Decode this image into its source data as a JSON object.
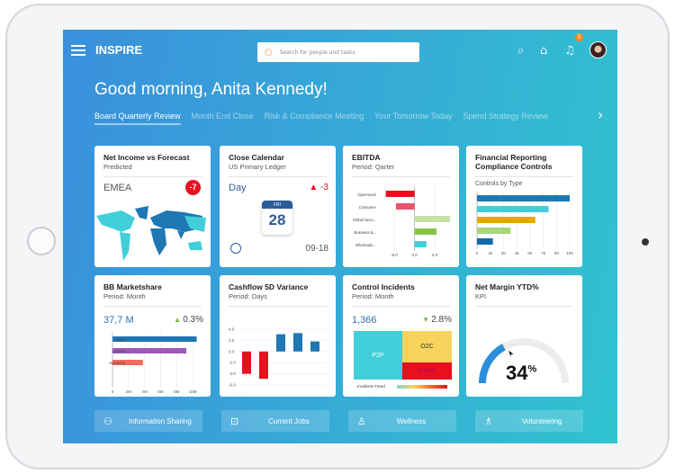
{
  "app": {
    "title": "INSPIRE",
    "notification_count": "5"
  },
  "search": {
    "placeholder": "Search for people and tasks"
  },
  "greeting": "Good morning, Anita Kennedy!",
  "tabs": [
    {
      "label": "Board Quarterly Review",
      "active": true
    },
    {
      "label": "Month End Close"
    },
    {
      "label": "Risk & Compliance Meeting"
    },
    {
      "label": "Your Tomorrow Today"
    },
    {
      "label": "Spend Strategy Review"
    }
  ],
  "cards": {
    "net_income": {
      "title": "Net Income vs Forecast",
      "subtitle": "Predicted",
      "region": "EMEA",
      "badge": "-7"
    },
    "close_calendar": {
      "title": "Close Calendar",
      "subtitle": "US Primary Ledger",
      "label": "Day",
      "alert": "-3",
      "cal_day": "FRI",
      "cal_date": "28",
      "date": "09-18"
    },
    "ebitda": {
      "title": "EBITDA",
      "subtitle": "Period: Qarter"
    },
    "compliance": {
      "title": "Financial Reporting Compliance Controls",
      "chart_label": "Controls by Type"
    },
    "marketshare": {
      "title": "BB Marketshare",
      "subtitle": "Period: Month",
      "value": "37,7 M",
      "delta": "0.3%"
    },
    "cashflow": {
      "title": "Cashflow 5D Variance",
      "subtitle": "Period: Days"
    },
    "incidents": {
      "title": "Control Incidents",
      "subtitle": "Period: Month",
      "value": "1,366",
      "delta": "2.8%",
      "tiles": [
        "P2P",
        "O2C",
        "Close"
      ],
      "legend": "Incidents Trend"
    },
    "net_margin": {
      "title": "Net Margin YTD%",
      "subtitle": "KPI",
      "value": "34",
      "unit": "%"
    }
  },
  "actions": [
    {
      "label": "Information Sharing",
      "icon": "network-icon"
    },
    {
      "label": "Current Jobs",
      "icon": "briefcase-icon"
    },
    {
      "label": "Wellness",
      "icon": "person-walking-icon"
    },
    {
      "label": "Volunteering",
      "icon": "volunteer-icon"
    }
  ],
  "colors": {
    "positive": "#7cb342",
    "negative": "#e8101e",
    "primary": "#2d6fb2"
  },
  "chart_data": [
    {
      "type": "bar",
      "orientation": "horizontal",
      "title": "EBITDA",
      "categories": [
        "Openreach",
        "Consumer",
        "Global Servi...",
        "Business &...",
        "Wholesale..."
      ],
      "values": [
        -8.5,
        -5.5,
        10.5,
        6.5,
        3.5
      ],
      "colors": [
        "#e8101e",
        "#e8546a",
        "#c5e1a5",
        "#8bc34a",
        "#40cfd9"
      ],
      "xticks": [
        "-6.0",
        "0.0",
        "6.0"
      ],
      "xlim": [
        -10,
        11
      ]
    },
    {
      "type": "bar",
      "orientation": "horizontal",
      "title": "Controls by Type",
      "values": [
        105,
        81,
        66,
        38,
        18
      ],
      "colors": [
        "#1f77b4",
        "#40cfd9",
        "#e6a700",
        "#a5d67a",
        "#0e6aa8"
      ],
      "xticks": [
        "0",
        "15",
        "30",
        "45",
        "60",
        "75",
        "90",
        "105"
      ],
      "xlim": [
        0,
        108
      ]
    },
    {
      "type": "bar",
      "orientation": "horizontal",
      "title": "BB Marketshare",
      "categories": [
        "Apple",
        "Lenovo",
        "Samsung"
      ],
      "values": [
        10.5,
        9.2,
        3.8
      ],
      "colors": [
        "#1f77b4",
        "#9c59b6",
        "#f26b5b"
      ],
      "xticks": [
        "0",
        "2M",
        "4M",
        "6M",
        "8M",
        "10M"
      ],
      "xlim": [
        0,
        11
      ]
    },
    {
      "type": "bar",
      "title": "Cashflow 5D Variance",
      "values": [
        -4.0,
        -4.9,
        3.1,
        3.3,
        1.8
      ],
      "yticks": [
        "4.0",
        "2.0",
        "0.0",
        "-2.0",
        "-4.0",
        "-6.0"
      ],
      "ylim": [
        -6,
        4
      ]
    },
    {
      "type": "gauge",
      "title": "Net Margin YTD%",
      "value": 34,
      "max": 100
    }
  ]
}
